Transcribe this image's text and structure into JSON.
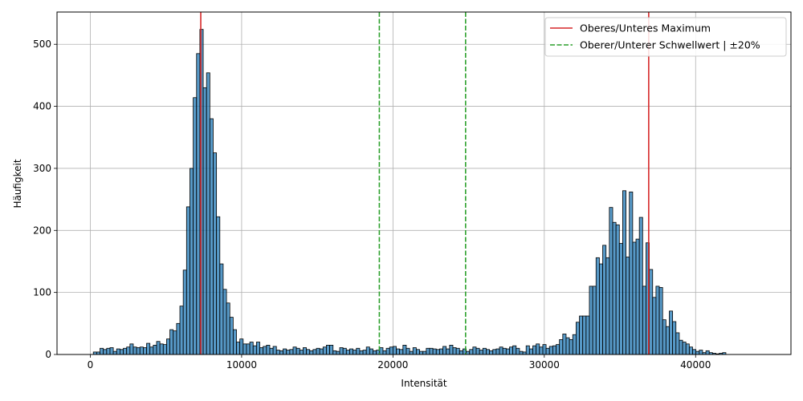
{
  "chart_data": {
    "type": "bar",
    "title": "",
    "xlabel": "Intensität",
    "ylabel": "Häufigkeit",
    "xlim": [
      -2200,
      46300
    ],
    "ylim": [
      0,
      552
    ],
    "grid": true,
    "legend_position": "top-right",
    "x_ticks": [
      0,
      10000,
      20000,
      30000,
      40000
    ],
    "x_tick_labels": [
      "0",
      "10000",
      "20000",
      "30000",
      "40000"
    ],
    "y_ticks": [
      0,
      100,
      200,
      300,
      400,
      500
    ],
    "y_tick_labels": [
      "0",
      "100",
      "200",
      "300",
      "400",
      "500"
    ],
    "bar_color": "#1f77b4",
    "bins": {
      "start": 200,
      "width": 220
    },
    "values": [
      4,
      4,
      10,
      8,
      10,
      11,
      5,
      9,
      8,
      10,
      12,
      17,
      12,
      11,
      12,
      11,
      18,
      12,
      15,
      21,
      17,
      16,
      25,
      40,
      38,
      50,
      78,
      136,
      238,
      300,
      414,
      485,
      524,
      430,
      454,
      380,
      325,
      222,
      146,
      105,
      83,
      60,
      40,
      20,
      25,
      17,
      17,
      20,
      14,
      20,
      11,
      13,
      15,
      10,
      13,
      7,
      6,
      9,
      7,
      8,
      12,
      10,
      7,
      11,
      8,
      6,
      8,
      10,
      9,
      12,
      15,
      15,
      6,
      5,
      11,
      10,
      7,
      9,
      7,
      10,
      6,
      7,
      12,
      9,
      6,
      7,
      11,
      6,
      10,
      12,
      13,
      9,
      8,
      15,
      10,
      5,
      11,
      8,
      5,
      5,
      10,
      10,
      9,
      8,
      9,
      13,
      9,
      15,
      11,
      10,
      6,
      9,
      5,
      8,
      12,
      10,
      7,
      10,
      8,
      6,
      8,
      9,
      12,
      10,
      9,
      12,
      14,
      10,
      5,
      4,
      14,
      9,
      14,
      17,
      12,
      16,
      10,
      13,
      14,
      16,
      24,
      33,
      27,
      24,
      32,
      52,
      62,
      62,
      62,
      110,
      110,
      156,
      146,
      176,
      156,
      237,
      213,
      209,
      179,
      264,
      157,
      262,
      181,
      186,
      221,
      110,
      180,
      137,
      92,
      110,
      108,
      56,
      45,
      70,
      53,
      35,
      23,
      20,
      17,
      12,
      8,
      5,
      7,
      3,
      6,
      3,
      2,
      1,
      2,
      3
    ],
    "series": [
      {
        "name": "Oberes/Unteres Maximum",
        "style": "solid",
        "color": "#d62728",
        "x": [
          7300,
          36900
        ]
      },
      {
        "name": "Oberer/Unterer Schwellwert | ±20%",
        "style": "dashed",
        "color": "#2ca02c",
        "x": [
          19100,
          24800
        ]
      }
    ]
  }
}
